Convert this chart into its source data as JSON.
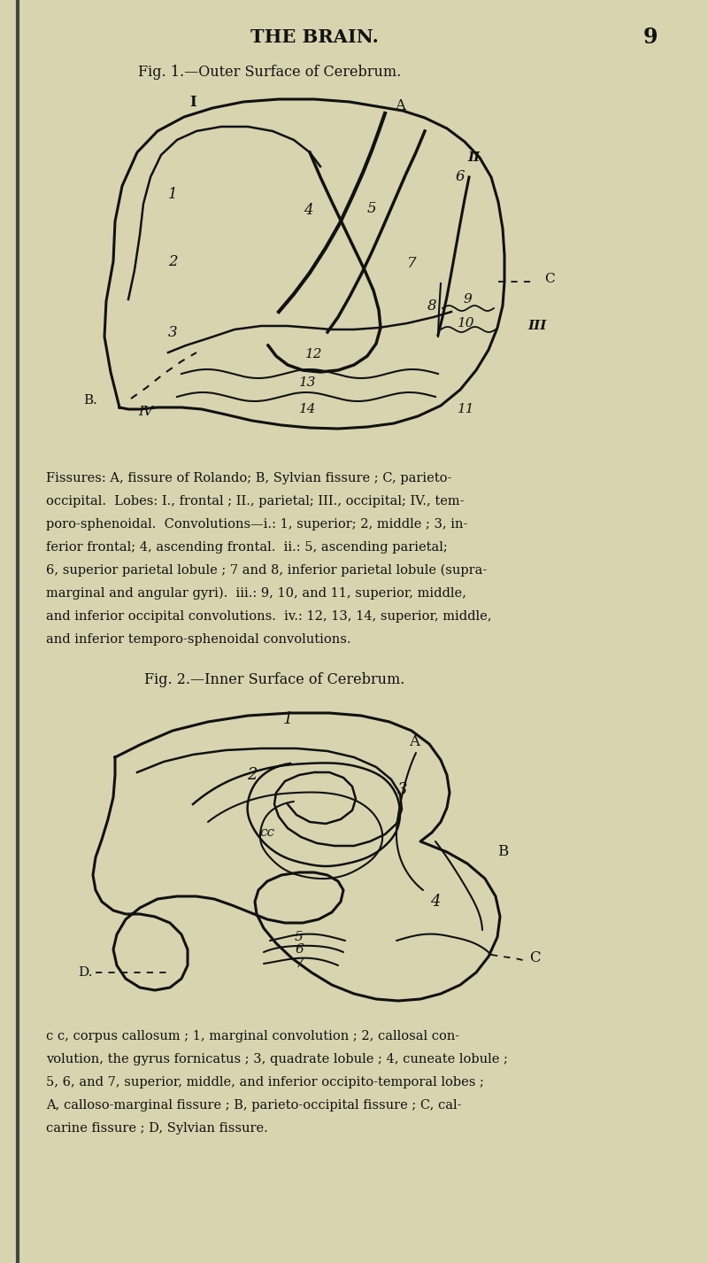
{
  "bg_color": "#d9d4b0",
  "text_color": "#111111",
  "page_title": "THE BRAIN.",
  "page_number": "9",
  "fig1_title": "Fig. 1.—Outer Surface of Cerebrum.",
  "fig2_title": "Fig. 2.—Inner Surface of Cerebrum.",
  "caption1": "Fissures: A, fissure of Rolando; B, Sylvian fissure ; C, parieto-\noccipital.  Lobes: I., frontal ; II., parietal; III., occipital; IV., tem-\nporo-sphenoidal.  Convolutions—i.: 1, superior; 2, middle ; 3, in-\nferior frontal; 4, ascending frontal.  ii.: 5, ascending parietal;\n6, superior parietal lobule ; 7 and 8, inferior parietal lobule (supra-\nmarginal and angular gyri).  iii.: 9, 10, and 11, superior, middle,\nand inferior occipital convolutions.  iv.: 12, 13, 14, superior, middle,\nand inferior temporo-sphenoidal convolutions.",
  "caption2": "c c, corpus callosum ; 1, marginal convolution ; 2, callosal con-\nvolution, the gyrus fornicatus ; 3, quadrate lobule ; 4, cuneate lobule ;\n5, 6, and 7, superior, middle, and inferior occipito-temporal lobes ;\nA, calloso-marginal fissure ; B, parieto-occipital fissure ; C, cal-\ncarine fissure ; D, Sylvian fissure."
}
